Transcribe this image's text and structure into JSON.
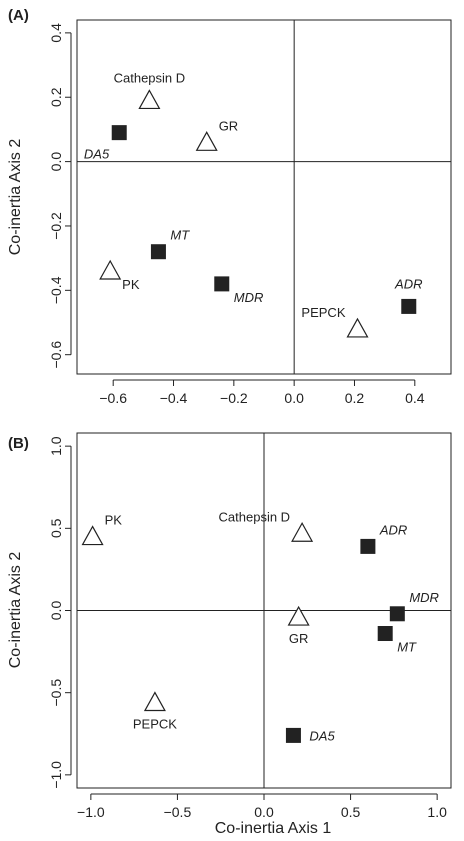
{
  "chart_data": [
    {
      "type": "scatter",
      "panel_label": "(A)",
      "ylabel": "Co-inertia Axis 2",
      "xlabel": "",
      "xlim": [
        -0.72,
        0.52
      ],
      "ylim": [
        -0.66,
        0.44
      ],
      "xticks": [
        -0.6,
        -0.4,
        -0.2,
        0.0,
        0.2,
        0.4
      ],
      "xtick_labels": [
        "−0.6",
        "−0.4",
        "−0.2",
        "0.0",
        "0.2",
        "0.4"
      ],
      "yticks": [
        -0.6,
        -0.4,
        -0.2,
        0.0,
        0.2,
        0.4
      ],
      "ytick_labels": [
        "−0.6",
        "−0.4",
        "−0.2",
        "0.0",
        "0.2",
        "0.4"
      ],
      "points": [
        {
          "label": "Cathepsin D",
          "x": -0.48,
          "y": 0.19,
          "marker": "triangle",
          "italic": false,
          "label_pos": "above"
        },
        {
          "label": "GR",
          "x": -0.29,
          "y": 0.06,
          "marker": "triangle",
          "italic": false,
          "label_pos": "upper-right"
        },
        {
          "label": "DA5",
          "x": -0.58,
          "y": 0.09,
          "marker": "square",
          "italic": true,
          "label_pos": "lower-left"
        },
        {
          "label": "MT",
          "x": -0.45,
          "y": -0.28,
          "marker": "square",
          "italic": true,
          "label_pos": "upper-right"
        },
        {
          "label": "PK",
          "x": -0.61,
          "y": -0.34,
          "marker": "triangle",
          "italic": false,
          "label_pos": "lower-right"
        },
        {
          "label": "MDR",
          "x": -0.24,
          "y": -0.38,
          "marker": "square",
          "italic": true,
          "label_pos": "lower-right"
        },
        {
          "label": "PEPCK",
          "x": 0.21,
          "y": -0.52,
          "marker": "triangle",
          "italic": false,
          "label_pos": "upper-left"
        },
        {
          "label": "ADR",
          "x": 0.38,
          "y": -0.45,
          "marker": "square",
          "italic": true,
          "label_pos": "above"
        }
      ]
    },
    {
      "type": "scatter",
      "panel_label": "(B)",
      "ylabel": "Co-inertia Axis 2",
      "xlabel": "Co-inertia Axis 1",
      "xlim": [
        -1.08,
        1.08
      ],
      "ylim": [
        -1.08,
        1.08
      ],
      "xticks": [
        -1.0,
        -0.5,
        0.0,
        0.5,
        1.0
      ],
      "xtick_labels": [
        "−1.0",
        "−0.5",
        "0.0",
        "0.5",
        "1.0"
      ],
      "yticks": [
        -1.0,
        -0.5,
        0.0,
        0.5,
        1.0
      ],
      "ytick_labels": [
        "−1.0",
        "−0.5",
        "0.0",
        "0.5",
        "1.0"
      ],
      "points": [
        {
          "label": "PK",
          "x": -0.99,
          "y": 0.45,
          "marker": "triangle",
          "italic": false,
          "label_pos": "upper-right"
        },
        {
          "label": "Cathepsin D",
          "x": 0.22,
          "y": 0.47,
          "marker": "triangle",
          "italic": false,
          "label_pos": "upper-left"
        },
        {
          "label": "ADR",
          "x": 0.6,
          "y": 0.39,
          "marker": "square",
          "italic": true,
          "label_pos": "upper-right"
        },
        {
          "label": "MDR",
          "x": 0.77,
          "y": -0.02,
          "marker": "square",
          "italic": true,
          "label_pos": "upper-right"
        },
        {
          "label": "GR",
          "x": 0.2,
          "y": -0.04,
          "marker": "triangle",
          "italic": false,
          "label_pos": "below"
        },
        {
          "label": "MT",
          "x": 0.7,
          "y": -0.14,
          "marker": "square",
          "italic": true,
          "label_pos": "lower-right"
        },
        {
          "label": "PEPCK",
          "x": -0.63,
          "y": -0.56,
          "marker": "triangle",
          "italic": false,
          "label_pos": "below"
        },
        {
          "label": "DA5",
          "x": 0.17,
          "y": -0.76,
          "marker": "square",
          "italic": true,
          "label_pos": "right"
        }
      ]
    }
  ]
}
